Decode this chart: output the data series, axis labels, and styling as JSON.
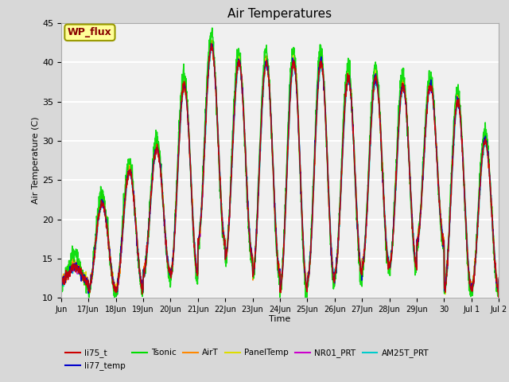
{
  "title": "Air Temperatures",
  "xlabel": "Time",
  "ylabel": "Air Temperature (C)",
  "ylim": [
    10,
    45
  ],
  "series": {
    "li75_t": {
      "color": "#cc0000",
      "lw": 1.0
    },
    "li77_temp": {
      "color": "#0000cc",
      "lw": 1.0
    },
    "Tsonic": {
      "color": "#00dd00",
      "lw": 1.2
    },
    "AirT": {
      "color": "#ff8800",
      "lw": 1.0
    },
    "PanelTemp": {
      "color": "#dddd00",
      "lw": 1.0
    },
    "NR01_PRT": {
      "color": "#cc00cc",
      "lw": 1.0
    },
    "AM25T_PRT": {
      "color": "#00cccc",
      "lw": 1.2
    }
  },
  "bg_color": "#d8d8d8",
  "plot_bg": "#f0f0f0",
  "annotation_text": "WP_flux",
  "annotation_bg": "#ffff99",
  "annotation_border": "#999900",
  "annotation_text_color": "#880000",
  "legend_fontsize": 7.5,
  "title_fontsize": 11,
  "tick_labels": [
    "Jun",
    "17Jun",
    "18Jun",
    "19Jun",
    "20Jun",
    "21Jun",
    "22Jun",
    "23Jun",
    "24Jun",
    "25Jun",
    "26Jun",
    "27Jun",
    "28Jun",
    "29Jun",
    "30",
    "Jul 1",
    "Jul 2"
  ],
  "day_ranges": [
    [
      12,
      14
    ],
    [
      11,
      22
    ],
    [
      11,
      26
    ],
    [
      13,
      29
    ],
    [
      13,
      37
    ],
    [
      17,
      42
    ],
    [
      15,
      40
    ],
    [
      13,
      40
    ],
    [
      11,
      40
    ],
    [
      12,
      40
    ],
    [
      13,
      38
    ],
    [
      14,
      38
    ],
    [
      14,
      37
    ],
    [
      17,
      37
    ],
    [
      11,
      35
    ],
    [
      11,
      30
    ],
    [
      12,
      27
    ]
  ]
}
